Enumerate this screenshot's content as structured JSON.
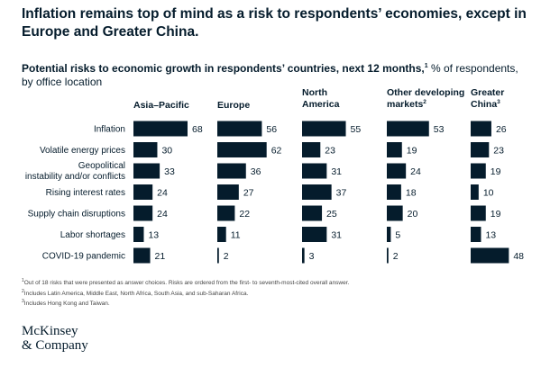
{
  "title": "Inflation remains top of mind as a risk to respondents’ economies, except in Europe and Greater China.",
  "subtitle": {
    "bold": "Potential risks to economic growth in respondents’ countries, next 12 months,",
    "sup": "1",
    "rest": " % of respondents, by office location"
  },
  "colors": {
    "bar": "#051c2c",
    "text": "#051c2c"
  },
  "chart_data": {
    "type": "bar",
    "orientation": "horizontal",
    "layout": "small-multiples",
    "categories": [
      "Inflation",
      "Volatile energy prices",
      "Geopolitical instability and/or conflicts",
      "Rising interest rates",
      "Supply chain disruptions",
      "Labor shortages",
      "COVID-19 pandemic"
    ],
    "series": [
      {
        "name": "Asia–Pacific",
        "sup": "",
        "values": [
          68,
          30,
          33,
          24,
          24,
          13,
          21
        ]
      },
      {
        "name": "Europe",
        "sup": "",
        "values": [
          56,
          62,
          36,
          27,
          22,
          11,
          2
        ]
      },
      {
        "name": "North America",
        "sup": "",
        "values": [
          55,
          23,
          31,
          37,
          25,
          31,
          3
        ]
      },
      {
        "name": "Other developing markets",
        "sup": "2",
        "values": [
          53,
          19,
          24,
          18,
          20,
          5,
          2
        ]
      },
      {
        "name": "Greater China",
        "sup": "3",
        "values": [
          26,
          23,
          19,
          10,
          19,
          13,
          48
        ]
      }
    ],
    "unit": "% of respondents",
    "xlim": [
      0,
      68
    ]
  },
  "footnotes": [
    {
      "sup": "1",
      "text": "Out of 18 risks that were presented as answer choices. Risks are ordered from the first- to seventh-most-cited overall answer."
    },
    {
      "sup": "2",
      "text": "Includes Latin America, Middle East, North Africa, South Asia, and sub-Saharan Africa."
    },
    {
      "sup": "3",
      "text": "Includes Hong Kong and Taiwan."
    }
  ],
  "logo": {
    "line1": "McKinsey",
    "line2": "& Company"
  }
}
